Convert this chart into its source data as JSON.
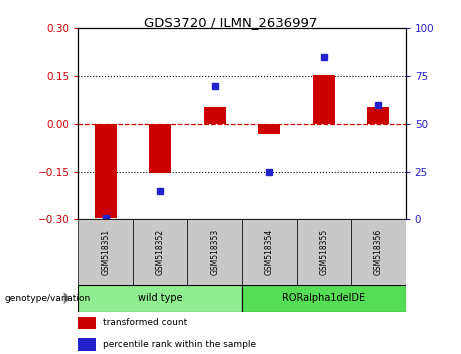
{
  "title": "GDS3720 / ILMN_2636997",
  "samples": [
    "GSM518351",
    "GSM518352",
    "GSM518353",
    "GSM518354",
    "GSM518355",
    "GSM518356"
  ],
  "red_values": [
    -0.295,
    -0.155,
    0.052,
    -0.032,
    0.152,
    0.052
  ],
  "blue_percentiles": [
    1.0,
    15.0,
    70.0,
    25.0,
    85.0,
    60.0
  ],
  "ylim_left": [
    -0.3,
    0.3
  ],
  "ylim_right": [
    0,
    100
  ],
  "yticks_left": [
    -0.3,
    -0.15,
    0,
    0.15,
    0.3
  ],
  "yticks_right": [
    0,
    25,
    50,
    75,
    100
  ],
  "red_color": "#CC0000",
  "blue_color": "#2222CC",
  "bar_width": 0.4,
  "legend_items": [
    {
      "label": "transformed count",
      "color": "#CC0000"
    },
    {
      "label": "percentile rank within the sample",
      "color": "#2222CC"
    }
  ],
  "genotype_label": "genotype/variation",
  "group_wild_color": "#90EE90",
  "group_mutant_color": "#55DD55",
  "hline_color": "#CC0000",
  "sample_cell_color": "#C8C8C8",
  "plot_bg_color": "#FFFFFF"
}
